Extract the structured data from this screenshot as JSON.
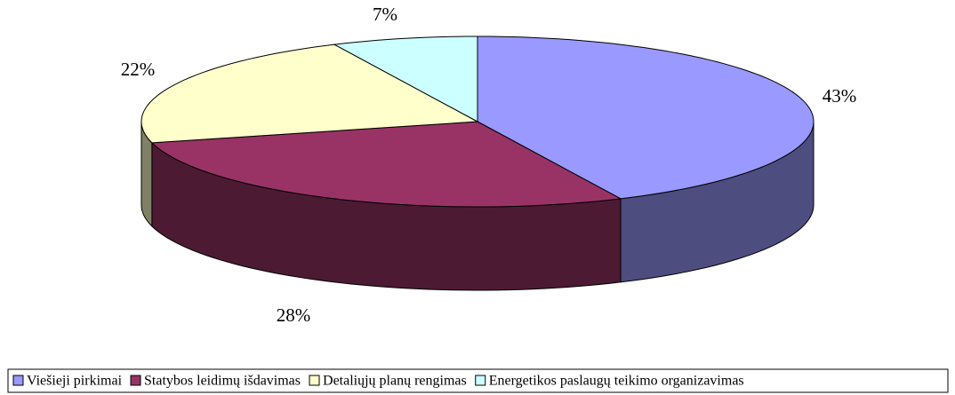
{
  "chart_data": {
    "type": "pie",
    "categories": [
      "Viešieji pirkimai",
      "Statybos leidimų išdavimas",
      "Detaliųjų planų rengimas",
      "Energetikos paslaugų teikimo organizavimas"
    ],
    "values": [
      43,
      28,
      22,
      7
    ],
    "value_labels": [
      "43%",
      "28%",
      "22%",
      "7%"
    ],
    "colors": [
      "#9999ff",
      "#993366",
      "#ffffcc",
      "#ccffff"
    ],
    "legend": "bottom"
  }
}
